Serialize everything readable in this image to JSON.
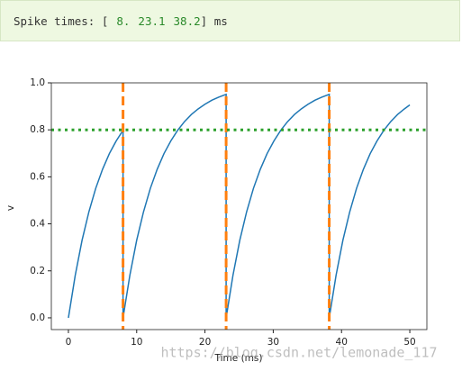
{
  "output": {
    "prefix": "Spike times: [",
    "spike_times": [
      "8.",
      "23.1",
      "38.2"
    ],
    "suffix": "] ms"
  },
  "chart_data": {
    "type": "line",
    "x": [
      0,
      1,
      2,
      3,
      4,
      5,
      6,
      7,
      8,
      8,
      9,
      10,
      11,
      12,
      13,
      14,
      15,
      16,
      17,
      18,
      19,
      20,
      21,
      22,
      23,
      23.1,
      23.1,
      24.1,
      25.1,
      26.1,
      27.1,
      28.1,
      29.1,
      30.1,
      31.1,
      32.1,
      33.1,
      34.1,
      35.1,
      36.1,
      37.1,
      38.1,
      38.2,
      38.2,
      39.2,
      40.2,
      41.2,
      42.2,
      43.2,
      44.2,
      45.2,
      46.2,
      47.2,
      48.2,
      49.2,
      50
    ],
    "values": [
      0,
      0.181,
      0.33,
      0.451,
      0.551,
      0.632,
      0.699,
      0.753,
      0.798,
      0,
      0.181,
      0.33,
      0.451,
      0.551,
      0.632,
      0.699,
      0.753,
      0.798,
      0.835,
      0.865,
      0.889,
      0.909,
      0.926,
      0.939,
      0.95,
      0.951,
      0,
      0.181,
      0.33,
      0.451,
      0.551,
      0.632,
      0.699,
      0.753,
      0.798,
      0.835,
      0.865,
      0.889,
      0.909,
      0.926,
      0.939,
      0.95,
      0.951,
      0,
      0.181,
      0.33,
      0.451,
      0.551,
      0.632,
      0.699,
      0.753,
      0.798,
      0.835,
      0.865,
      0.889,
      0.906
    ],
    "color": "#1f77b4",
    "vlines": {
      "values": [
        8,
        23.1,
        38.2
      ],
      "color": "#ff7f0e"
    },
    "hline": {
      "value": 0.8,
      "color": "#2ca02c"
    },
    "xlabel": "Time (ms)",
    "ylabel": "v",
    "xlim": [
      -2.5,
      52.5
    ],
    "xticks": [
      0,
      10,
      20,
      30,
      40,
      50
    ],
    "ylim": [
      -0.05,
      1.0
    ],
    "yticks": [
      {
        "value": 0,
        "label": "0.0"
      },
      0.2,
      0.4,
      0.6,
      0.8,
      {
        "value": 1,
        "label": "1.0"
      }
    ]
  },
  "watermark": "https://blog.csdn.net/lemonade_117"
}
